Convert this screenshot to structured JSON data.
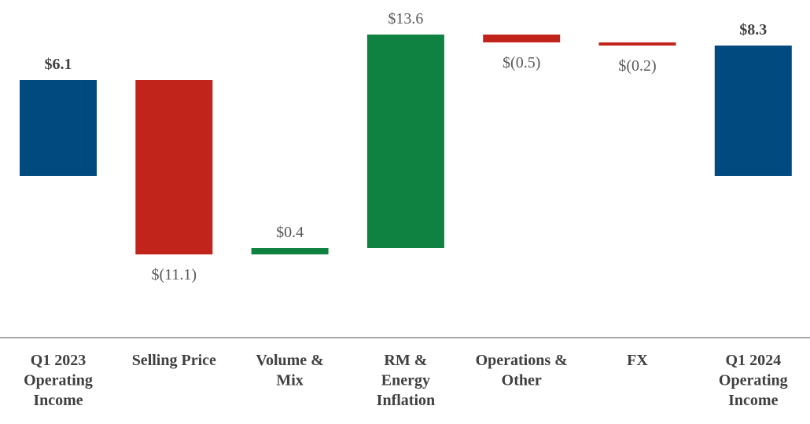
{
  "chart_data": {
    "type": "bar",
    "subtype": "waterfall",
    "title": "",
    "xlabel": "",
    "ylabel": "",
    "grid": false,
    "legend": "none",
    "colors": {
      "total": "#004A80",
      "decrease": "#C1241A",
      "increase": "#0F8241",
      "axis": "#a6a6a6"
    },
    "ylim": [
      -11.5,
      14.5
    ],
    "bars": [
      {
        "label_lines": [
          "Q1 2023",
          "Operating",
          "Income"
        ],
        "kind": "total",
        "value": 6.1,
        "value_label": "$6.1"
      },
      {
        "label_lines": [
          "Selling Price"
        ],
        "kind": "decrease",
        "value": -11.1,
        "value_label": "$(11.1)"
      },
      {
        "label_lines": [
          "Volume &",
          "Mix"
        ],
        "kind": "increase",
        "value": 0.4,
        "value_label": "$0.4"
      },
      {
        "label_lines": [
          "RM &",
          "Energy",
          "Inflation"
        ],
        "kind": "increase",
        "value": 13.6,
        "value_label": "$13.6"
      },
      {
        "label_lines": [
          "Operations &",
          "Other"
        ],
        "kind": "decrease",
        "value": -0.5,
        "value_label": "$(0.5)"
      },
      {
        "label_lines": [
          "FX"
        ],
        "kind": "decrease",
        "value": -0.2,
        "value_label": "$(0.2)"
      },
      {
        "label_lines": [
          "Q1 2024",
          "Operating",
          "Income"
        ],
        "kind": "total",
        "value": 8.3,
        "value_label": "$8.3"
      }
    ]
  }
}
